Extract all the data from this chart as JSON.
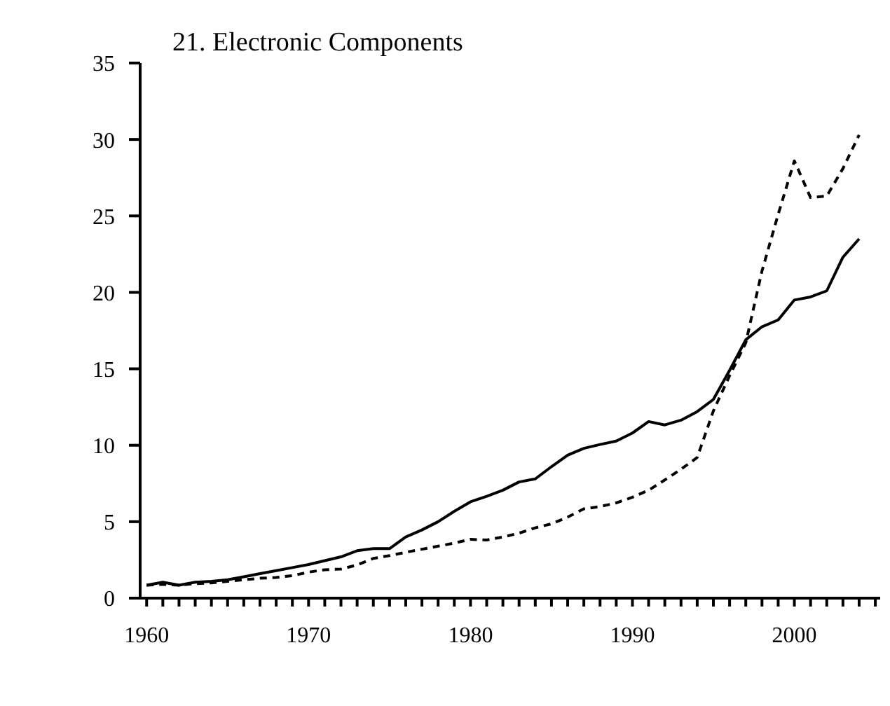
{
  "chart_data": {
    "type": "line",
    "title": "21. Electronic Components",
    "x": [
      1960,
      1961,
      1962,
      1963,
      1964,
      1965,
      1966,
      1967,
      1968,
      1969,
      1970,
      1971,
      1972,
      1973,
      1974,
      1975,
      1976,
      1977,
      1978,
      1979,
      1980,
      1981,
      1982,
      1983,
      1984,
      1985,
      1986,
      1987,
      1988,
      1989,
      1990,
      1991,
      1992,
      1993,
      1994,
      1995,
      1996,
      1997,
      1998,
      1999,
      2000,
      2001,
      2002,
      2003,
      2004
    ],
    "series": [
      {
        "color": "#000000",
        "line_style": "solid",
        "values": [
          0.85,
          1.04,
          0.85,
          1.04,
          1.1,
          1.2,
          1.4,
          1.6,
          1.8,
          2.0,
          2.2,
          2.45,
          2.7,
          3.1,
          3.24,
          3.24,
          4.0,
          4.46,
          5.0,
          5.68,
          6.3,
          6.66,
          7.06,
          7.6,
          7.8,
          8.6,
          9.35,
          9.8,
          10.05,
          10.27,
          10.8,
          11.55,
          11.33,
          11.64,
          12.2,
          13.0,
          14.9,
          16.9,
          17.75,
          18.2,
          19.5,
          19.7,
          20.1,
          22.3,
          23.5
        ]
      },
      {
        "color": "#000000",
        "line_style": "dashed",
        "values": [
          0.85,
          0.9,
          0.85,
          0.95,
          1.0,
          1.1,
          1.2,
          1.3,
          1.35,
          1.47,
          1.7,
          1.86,
          1.9,
          2.17,
          2.6,
          2.78,
          3.0,
          3.2,
          3.4,
          3.6,
          3.85,
          3.8,
          4.0,
          4.25,
          4.6,
          4.86,
          5.3,
          5.84,
          5.99,
          6.23,
          6.6,
          7.06,
          7.73,
          8.43,
          9.2,
          12.25,
          14.55,
          16.7,
          21.4,
          25.1,
          28.6,
          26.2,
          26.3,
          28.1,
          30.3
        ]
      }
    ],
    "xlim": [
      1959.6,
      2005.3
    ],
    "xticks": [
      1960,
      {
        "value": 1961,
        "label": null
      },
      {
        "value": 1962,
        "label": null
      },
      {
        "value": 1963,
        "label": null
      },
      {
        "value": 1964,
        "label": null
      },
      {
        "value": 1965,
        "label": null
      },
      {
        "value": 1966,
        "label": null
      },
      {
        "value": 1967,
        "label": null
      },
      {
        "value": 1968,
        "label": null
      },
      {
        "value": 1969,
        "label": null
      },
      1970,
      {
        "value": 1971,
        "label": null
      },
      {
        "value": 1972,
        "label": null
      },
      {
        "value": 1973,
        "label": null
      },
      {
        "value": 1974,
        "label": null
      },
      {
        "value": 1975,
        "label": null
      },
      {
        "value": 1976,
        "label": null
      },
      {
        "value": 1977,
        "label": null
      },
      {
        "value": 1978,
        "label": null
      },
      {
        "value": 1979,
        "label": null
      },
      1980,
      {
        "value": 1981,
        "label": null
      },
      {
        "value": 1982,
        "label": null
      },
      {
        "value": 1983,
        "label": null
      },
      {
        "value": 1984,
        "label": null
      },
      {
        "value": 1985,
        "label": null
      },
      {
        "value": 1986,
        "label": null
      },
      {
        "value": 1987,
        "label": null
      },
      {
        "value": 1988,
        "label": null
      },
      {
        "value": 1989,
        "label": null
      },
      1990,
      {
        "value": 1991,
        "label": null
      },
      {
        "value": 1992,
        "label": null
      },
      {
        "value": 1993,
        "label": null
      },
      {
        "value": 1994,
        "label": null
      },
      {
        "value": 1995,
        "label": null
      },
      {
        "value": 1996,
        "label": null
      },
      {
        "value": 1997,
        "label": null
      },
      {
        "value": 1998,
        "label": null
      },
      {
        "value": 1999,
        "label": null
      },
      2000,
      {
        "value": 2001,
        "label": null
      },
      {
        "value": 2002,
        "label": null
      },
      {
        "value": 2003,
        "label": null
      },
      {
        "value": 2004,
        "label": null
      },
      {
        "value": 2005,
        "label": null
      }
    ],
    "ylim": [
      0,
      35
    ],
    "yticks": [
      0,
      5,
      10,
      15,
      20,
      25,
      30,
      35
    ],
    "grid": false,
    "legend": false,
    "marker": "none"
  }
}
